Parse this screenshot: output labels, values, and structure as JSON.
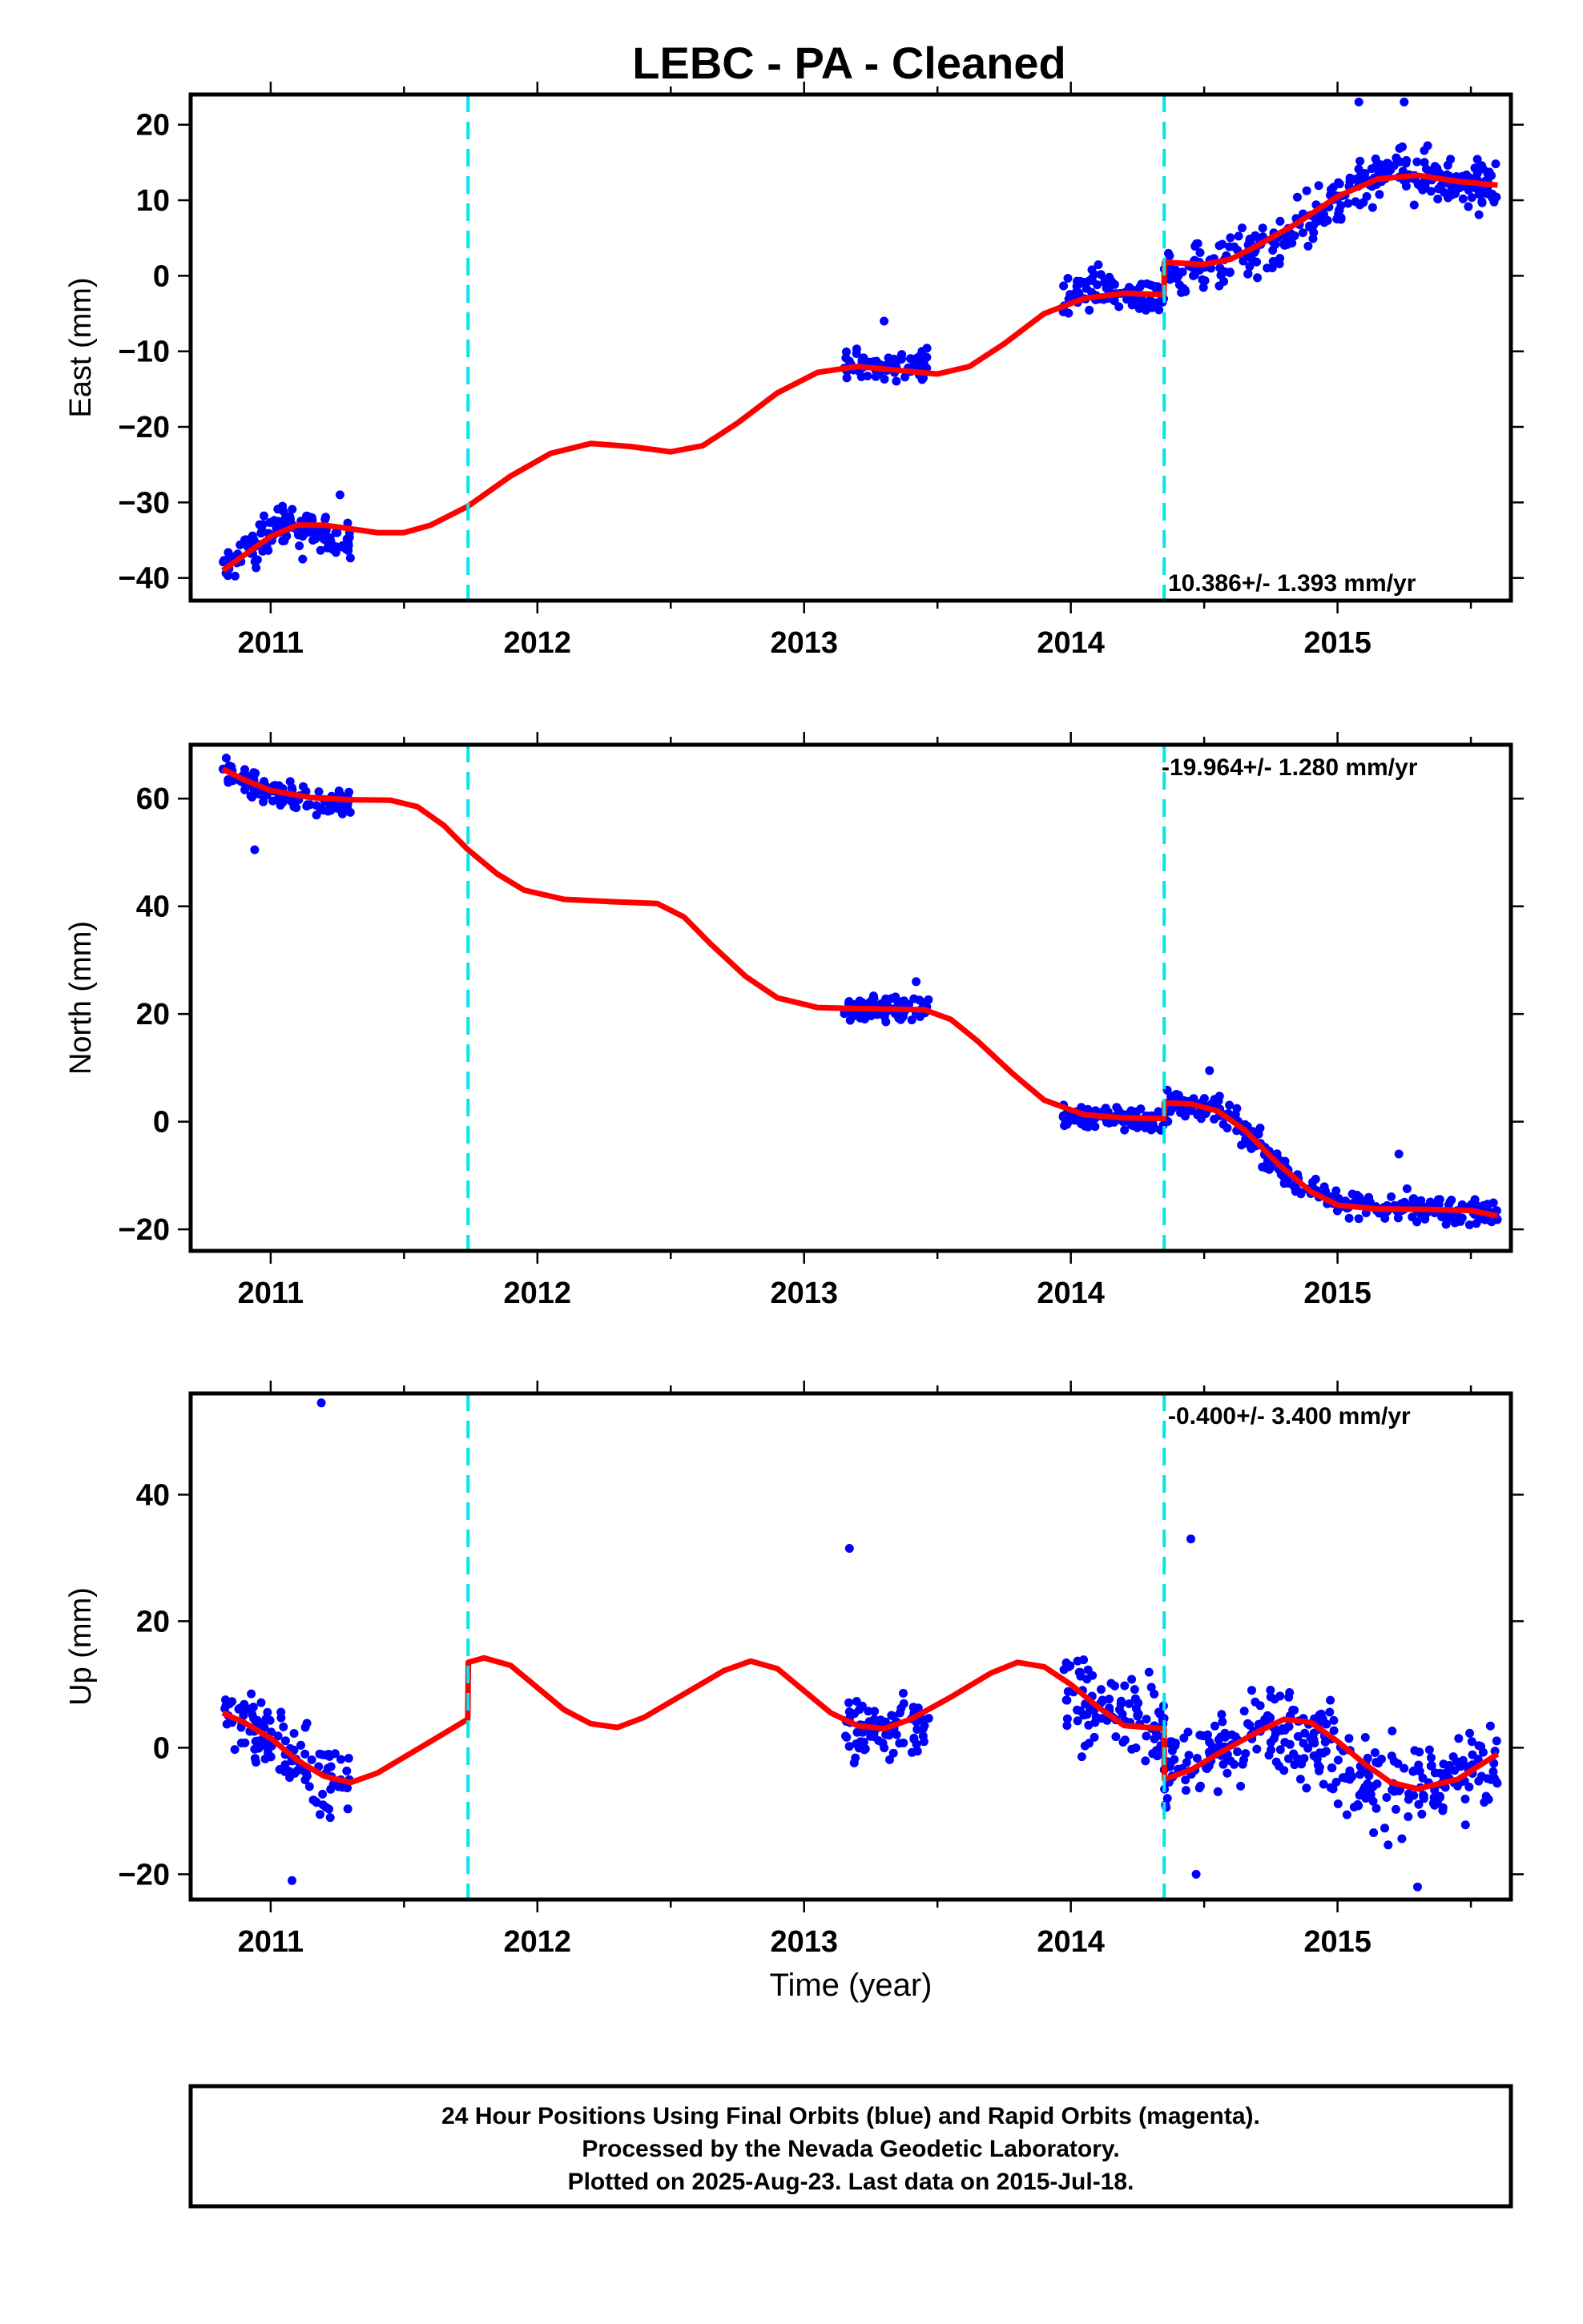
{
  "figure": {
    "title": "LEBC  - PA - Cleaned",
    "xlabel": "Time (year)",
    "footer": [
      "24 Hour Positions Using Final Orbits (blue) and Rapid Orbits (magenta).",
      "Processed by the Nevada Geodetic Laboratory.",
      "Plotted on 2025-Aug-23. Last data on 2015-Jul-18."
    ],
    "colors": {
      "data": "#0000ff",
      "model": "#ff0000",
      "steps": "#00e5ee",
      "frame": "#000000"
    }
  },
  "chart_data": [
    {
      "type": "scatter",
      "ylabel": "East (mm)",
      "rate_label": "10.386+/- 1.393 mm/yr",
      "xlim": [
        2010.7,
        2015.65
      ],
      "ylim": [
        -43,
        24
      ],
      "x_ticks": [
        2011,
        2012,
        2013,
        2014,
        2015
      ],
      "y_ticks": [
        -40,
        -30,
        -20,
        -10,
        0,
        10,
        20
      ],
      "step_lines": [
        2011.74,
        2014.35
      ],
      "data_segments": [
        {
          "x_start": 2010.82,
          "x_end": 2011.3,
          "center": [
            [
              2010.82,
              -39
            ],
            [
              2010.9,
              -37
            ],
            [
              2011.0,
              -34
            ],
            [
              2011.1,
              -33
            ],
            [
              2011.2,
              -33.5
            ],
            [
              2011.3,
              -36
            ]
          ],
          "spread": 2.5
        },
        {
          "x_start": 2013.15,
          "x_end": 2013.47,
          "center": [
            [
              2013.15,
              -11.5
            ],
            [
              2013.3,
              -12
            ],
            [
              2013.47,
              -11.5
            ]
          ],
          "spread": 1.8
        },
        {
          "x_start": 2013.97,
          "x_end": 2014.35,
          "center": [
            [
              2013.97,
              -2
            ],
            [
              2014.15,
              -2
            ],
            [
              2014.35,
              -3
            ]
          ],
          "spread": 2.5
        },
        {
          "x_start": 2014.35,
          "x_end": 2015.6,
          "center": [
            [
              2014.35,
              0
            ],
            [
              2014.6,
              1.5
            ],
            [
              2014.8,
              5
            ],
            [
              2015.0,
              10
            ],
            [
              2015.2,
              14
            ],
            [
              2015.4,
              13
            ],
            [
              2015.6,
              12
            ]
          ],
          "spread": 3.2
        }
      ],
      "outliers": [
        [
          2015.08,
          23
        ],
        [
          2015.25,
          23
        ],
        [
          2011.26,
          -29
        ],
        [
          2011.12,
          -37.5
        ],
        [
          2013.3,
          -6
        ]
      ],
      "model": [
        [
          2010.82,
          -39
        ],
        [
          2010.9,
          -37
        ],
        [
          2011.0,
          -34.5
        ],
        [
          2011.1,
          -33
        ],
        [
          2011.2,
          -33
        ],
        [
          2011.3,
          -33.5
        ],
        [
          2011.4,
          -34
        ],
        [
          2011.5,
          -34
        ],
        [
          2011.6,
          -33
        ],
        [
          2011.74,
          -30.5
        ],
        [
          2011.9,
          -26.5
        ],
        [
          2012.05,
          -23.5
        ],
        [
          2012.2,
          -22.2
        ],
        [
          2012.35,
          -22.6
        ],
        [
          2012.5,
          -23.3
        ],
        [
          2012.62,
          -22.5
        ],
        [
          2012.75,
          -19.5
        ],
        [
          2012.9,
          -15.5
        ],
        [
          2013.05,
          -12.8
        ],
        [
          2013.2,
          -12
        ],
        [
          2013.35,
          -12.5
        ],
        [
          2013.5,
          -13
        ],
        [
          2013.62,
          -12
        ],
        [
          2013.75,
          -9
        ],
        [
          2013.9,
          -5
        ],
        [
          2014.05,
          -3
        ],
        [
          2014.2,
          -2.3
        ],
        [
          2014.349,
          -2.5
        ],
        [
          2014.351,
          1.8
        ],
        [
          2014.5,
          1.5
        ],
        [
          2014.6,
          2.2
        ],
        [
          2014.7,
          4
        ],
        [
          2014.85,
          7
        ],
        [
          2015.0,
          10.5
        ],
        [
          2015.15,
          12.8
        ],
        [
          2015.3,
          13.3
        ],
        [
          2015.45,
          12.5
        ],
        [
          2015.6,
          12
        ]
      ]
    },
    {
      "type": "scatter",
      "ylabel": "North (mm)",
      "rate_label": "-19.964+/- 1.280 mm/yr",
      "xlim": [
        2010.7,
        2015.65
      ],
      "ylim": [
        -24,
        70
      ],
      "x_ticks": [
        2011,
        2012,
        2013,
        2014,
        2015
      ],
      "y_ticks": [
        -20,
        0,
        20,
        40,
        60
      ],
      "step_lines": [
        2011.74,
        2014.35
      ],
      "data_segments": [
        {
          "x_start": 2010.82,
          "x_end": 2011.3,
          "center": [
            [
              2010.82,
              65
            ],
            [
              2010.95,
              62
            ],
            [
              2011.1,
              60
            ],
            [
              2011.3,
              59
            ]
          ],
          "spread": 2.2
        },
        {
          "x_start": 2013.15,
          "x_end": 2013.47,
          "center": [
            [
              2013.15,
              21
            ],
            [
              2013.3,
              21
            ],
            [
              2013.47,
              21
            ]
          ],
          "spread": 2.0
        },
        {
          "x_start": 2013.97,
          "x_end": 2014.35,
          "center": [
            [
              2013.97,
              1
            ],
            [
              2014.15,
              1
            ],
            [
              2014.35,
              0
            ]
          ],
          "spread": 2.2
        },
        {
          "x_start": 2014.35,
          "x_end": 2015.6,
          "center": [
            [
              2014.35,
              3
            ],
            [
              2014.5,
              3
            ],
            [
              2014.62,
              0
            ],
            [
              2014.75,
              -7
            ],
            [
              2014.9,
              -13
            ],
            [
              2015.05,
              -15.5
            ],
            [
              2015.3,
              -16
            ],
            [
              2015.6,
              -17
            ]
          ],
          "spread": 2.4
        }
      ],
      "outliers": [
        [
          2010.94,
          50.5
        ],
        [
          2013.42,
          26
        ],
        [
          2014.52,
          9.5
        ],
        [
          2015.23,
          -6
        ]
      ],
      "model": [
        [
          2010.82,
          65.5
        ],
        [
          2010.9,
          63.5
        ],
        [
          2011.0,
          61.5
        ],
        [
          2011.15,
          60.2
        ],
        [
          2011.3,
          59.8
        ],
        [
          2011.45,
          59.7
        ],
        [
          2011.55,
          58.5
        ],
        [
          2011.65,
          55
        ],
        [
          2011.74,
          50.5
        ],
        [
          2011.85,
          46
        ],
        [
          2011.95,
          43
        ],
        [
          2012.1,
          41.3
        ],
        [
          2012.3,
          40.8
        ],
        [
          2012.45,
          40.5
        ],
        [
          2012.55,
          38
        ],
        [
          2012.65,
          33
        ],
        [
          2012.78,
          27
        ],
        [
          2012.9,
          23
        ],
        [
          2013.05,
          21.2
        ],
        [
          2013.2,
          21
        ],
        [
          2013.45,
          20.8
        ],
        [
          2013.55,
          19
        ],
        [
          2013.65,
          15
        ],
        [
          2013.78,
          9
        ],
        [
          2013.9,
          4
        ],
        [
          2014.05,
          1.3
        ],
        [
          2014.2,
          0.7
        ],
        [
          2014.349,
          0.6
        ],
        [
          2014.351,
          3.5
        ],
        [
          2014.45,
          3.3
        ],
        [
          2014.55,
          2
        ],
        [
          2014.65,
          -1.5
        ],
        [
          2014.78,
          -8
        ],
        [
          2014.9,
          -13
        ],
        [
          2015.0,
          -15.5
        ],
        [
          2015.15,
          -16.2
        ],
        [
          2015.35,
          -16.3
        ],
        [
          2015.5,
          -16.5
        ],
        [
          2015.6,
          -17.5
        ]
      ]
    },
    {
      "type": "scatter",
      "ylabel": "Up (mm)",
      "rate_label": "-0.400+/- 3.400 mm/yr",
      "xlim": [
        2010.7,
        2015.65
      ],
      "ylim": [
        -24,
        56
      ],
      "x_ticks": [
        2011,
        2012,
        2013,
        2014,
        2015
      ],
      "y_ticks": [
        -20,
        0,
        20,
        40
      ],
      "step_lines": [
        2011.74,
        2014.35
      ],
      "data_segments": [
        {
          "x_start": 2010.82,
          "x_end": 2011.3,
          "center": [
            [
              2010.82,
              5
            ],
            [
              2010.95,
              4
            ],
            [
              2011.1,
              -1
            ],
            [
              2011.2,
              -5
            ],
            [
              2011.3,
              -6
            ]
          ],
          "spread": 5.0
        },
        {
          "x_start": 2013.15,
          "x_end": 2013.47,
          "center": [
            [
              2013.15,
              2
            ],
            [
              2013.3,
              3
            ],
            [
              2013.47,
              4
            ]
          ],
          "spread": 5.0
        },
        {
          "x_start": 2013.97,
          "x_end": 2014.35,
          "center": [
            [
              2013.97,
              9
            ],
            [
              2014.15,
              5
            ],
            [
              2014.35,
              3
            ]
          ],
          "spread": 6.5
        },
        {
          "x_start": 2014.35,
          "x_end": 2015.6,
          "center": [
            [
              2014.35,
              -3
            ],
            [
              2014.6,
              0
            ],
            [
              2014.8,
              4
            ],
            [
              2015.0,
              -3
            ],
            [
              2015.2,
              -7
            ],
            [
              2015.4,
              -5
            ],
            [
              2015.6,
              -2
            ]
          ],
          "spread": 6.5
        }
      ],
      "outliers": [
        [
          2011.19,
          54.5
        ],
        [
          2013.17,
          31.5
        ],
        [
          2014.45,
          33
        ],
        [
          2011.08,
          -21
        ],
        [
          2014.47,
          -20
        ],
        [
          2015.3,
          -22
        ]
      ],
      "model": [
        [
          2010.82,
          5.5
        ],
        [
          2010.9,
          4
        ],
        [
          2011.0,
          1.5
        ],
        [
          2011.1,
          -2
        ],
        [
          2011.2,
          -4.5
        ],
        [
          2011.3,
          -5.5
        ],
        [
          2011.4,
          -4
        ],
        [
          2011.5,
          -1.5
        ],
        [
          2011.6,
          1
        ],
        [
          2011.739,
          4.5
        ],
        [
          2011.741,
          13.5
        ],
        [
          2011.8,
          14.2
        ],
        [
          2011.9,
          13
        ],
        [
          2012.0,
          9.5
        ],
        [
          2012.1,
          6
        ],
        [
          2012.2,
          3.8
        ],
        [
          2012.3,
          3.2
        ],
        [
          2012.4,
          4.8
        ],
        [
          2012.55,
          8.5
        ],
        [
          2012.7,
          12.2
        ],
        [
          2012.8,
          13.7
        ],
        [
          2012.9,
          12.5
        ],
        [
          2013.0,
          9
        ],
        [
          2013.1,
          5.5
        ],
        [
          2013.2,
          3.5
        ],
        [
          2013.3,
          3
        ],
        [
          2013.4,
          4.5
        ],
        [
          2013.55,
          8
        ],
        [
          2013.7,
          11.8
        ],
        [
          2013.8,
          13.5
        ],
        [
          2013.9,
          12.8
        ],
        [
          2014.0,
          10
        ],
        [
          2014.1,
          6.5
        ],
        [
          2014.2,
          3.5
        ],
        [
          2014.349,
          3
        ],
        [
          2014.351,
          -5
        ],
        [
          2014.45,
          -3.5
        ],
        [
          2014.55,
          -1
        ],
        [
          2014.7,
          2.5
        ],
        [
          2014.8,
          4.5
        ],
        [
          2014.9,
          4
        ],
        [
          2015.0,
          1
        ],
        [
          2015.1,
          -2.5
        ],
        [
          2015.2,
          -5.5
        ],
        [
          2015.3,
          -6.5
        ],
        [
          2015.45,
          -5
        ],
        [
          2015.6,
          -1
        ]
      ]
    }
  ]
}
